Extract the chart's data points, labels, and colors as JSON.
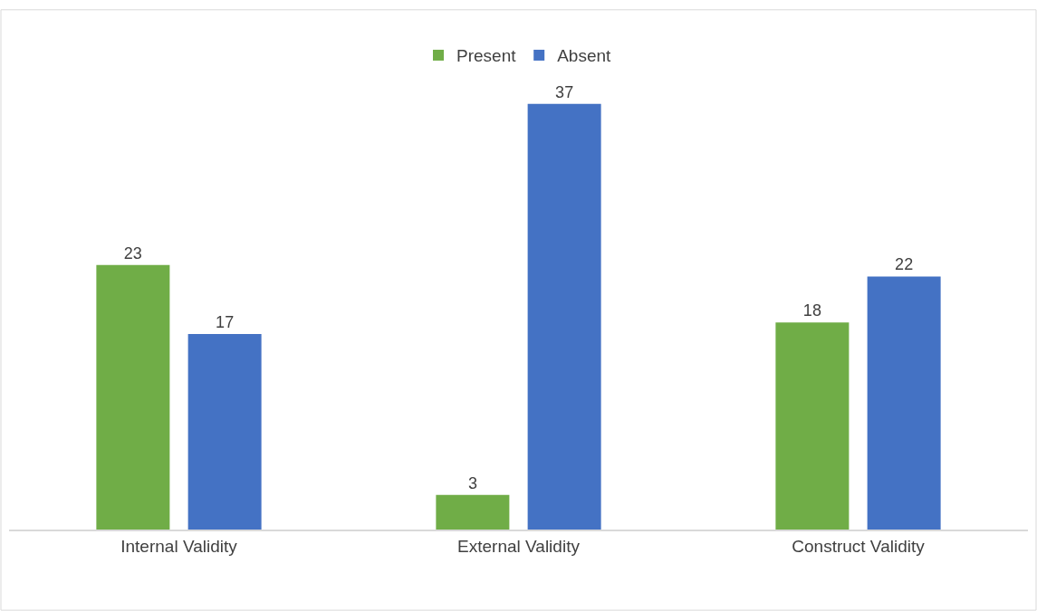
{
  "chart_data": {
    "type": "bar",
    "categories": [
      "Internal Validity",
      "External Validity",
      "Construct Validity"
    ],
    "series": [
      {
        "name": "Present",
        "color": "#70ad47",
        "values": [
          23,
          3,
          18
        ]
      },
      {
        "name": "Absent",
        "color": "#4472c4",
        "values": [
          17,
          37,
          22
        ]
      }
    ],
    "data_labels": true,
    "legend": "top"
  }
}
